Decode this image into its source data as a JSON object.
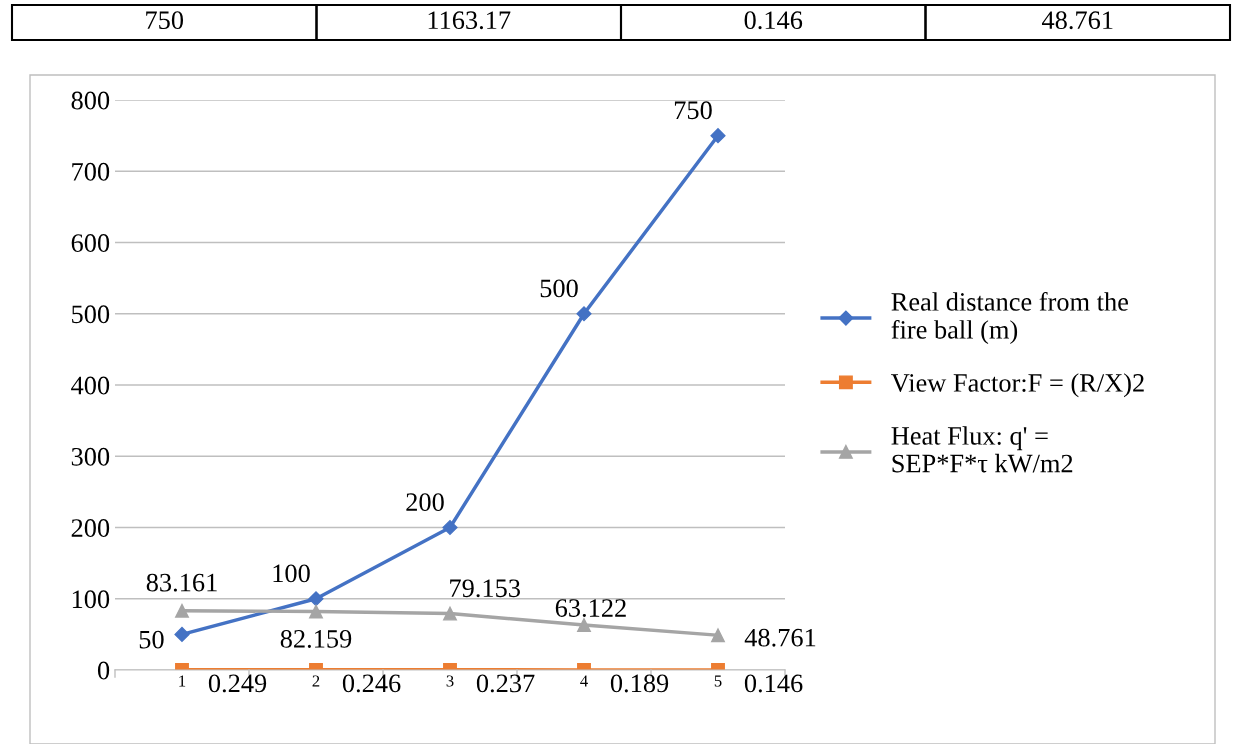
{
  "chart_data": {
    "type": "line",
    "annotations": [
      "750",
      "1163.17",
      "0.146",
      "48.761"
    ],
    "categories": [
      "1",
      "2",
      "3",
      "4",
      "5"
    ],
    "series": [
      {
        "name": "Real distance from the fire ball (m)",
        "color": "#4472c4",
        "marker": "diamond",
        "values": [
          50,
          100,
          200,
          500,
          750
        ]
      },
      {
        "name": "View Factor:F = (R/X)2",
        "color": "#ed7d31",
        "marker": "square",
        "values": [
          0.249,
          0.246,
          0.237,
          0.189,
          0.146
        ]
      },
      {
        "name": "Heat Flux: q' = SEP*F*τ kW/m2",
        "color": "#a5a5a5",
        "marker": "triangle",
        "values": [
          83.161,
          82.159,
          79.153,
          63.122,
          48.761
        ]
      }
    ],
    "ylim": [
      0,
      800
    ],
    "yticks": [
      0,
      100,
      200,
      300,
      400,
      500,
      600,
      700,
      800
    ],
    "grid": "y",
    "legend": "right",
    "data_labels": true,
    "line_style": "solid"
  }
}
